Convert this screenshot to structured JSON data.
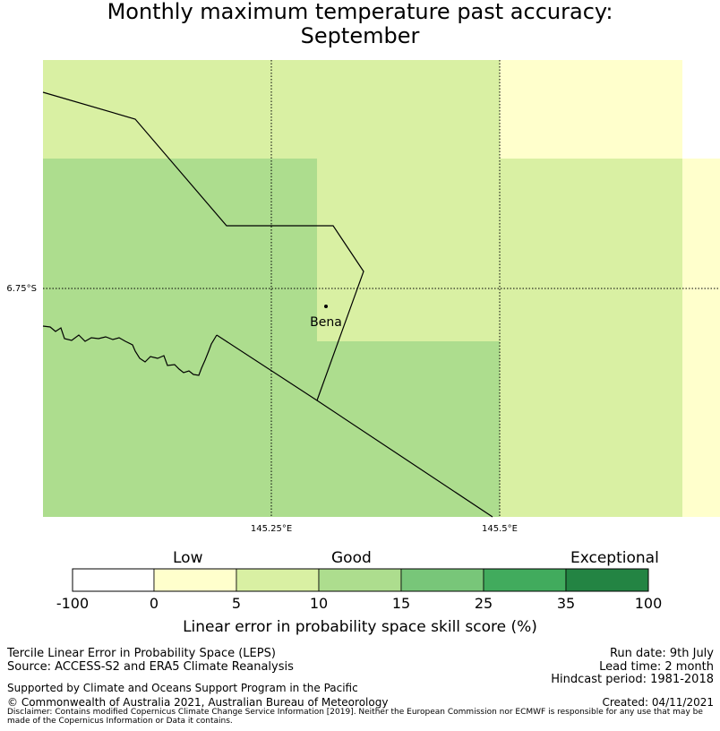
{
  "title": {
    "line1": "Monthly maximum temperature past accuracy:",
    "line2": "September"
  },
  "map": {
    "place_label": "Bena",
    "lat_label": "6.75°S",
    "lon_labels": [
      "145.25°E",
      "145.5°E"
    ]
  },
  "legend": {
    "categories": [
      "Low",
      "Good",
      "Exceptional"
    ],
    "ticks": [
      "-100",
      "0",
      "5",
      "10",
      "15",
      "25",
      "35",
      "100"
    ],
    "colors": [
      "#ffffff",
      "#ffffcc",
      "#d9f0a3",
      "#addd8e",
      "#78c679",
      "#41ab5d",
      "#238443"
    ],
    "title": "Linear error in probability space skill score (%)"
  },
  "colors": {
    "cell_light_yellow": "#ffffcc",
    "cell_pale_green": "#d9f0a3",
    "cell_green": "#addd8e"
  },
  "footer": {
    "left1": "Tercile Linear Error in Probability Space (LEPS)",
    "left2": "Source: ACCESS-S2 and ERA5 Climate Reanalysis",
    "support": "Supported by Climate and Oceans Support Program in the Pacific",
    "copyright": "© Commonwealth of Australia 2021, Australian Bureau of Meteorology",
    "run_date": "Run date: 9th July",
    "lead_time": "Lead time: 2 month",
    "hindcast": "Hindcast period: 1981-2018",
    "created": "Created: 04/11/2021",
    "disclaimer": "Disclaimer: Contains modified Copernicus Climate Change Service Information [2019]. Neither the European Commission nor ECMWF is responsible for any use that may be made of the Copernicus Information or Data it contains."
  }
}
